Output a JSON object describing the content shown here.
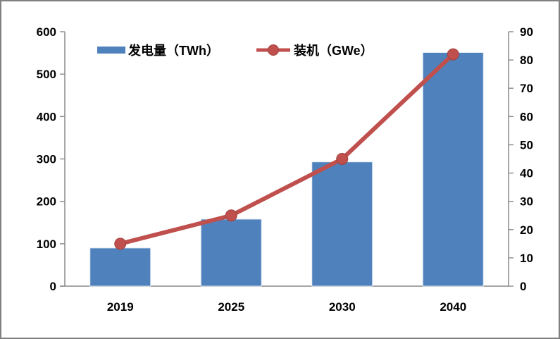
{
  "chart_data": {
    "type": "combo",
    "categories": [
      "2019",
      "2025",
      "2030",
      "2040"
    ],
    "series": [
      {
        "name": "发电量（TWh）",
        "type": "bar",
        "axis": "left",
        "color": "#4F81BD",
        "values": [
          90,
          158,
          293,
          551
        ]
      },
      {
        "name": "装机（GWe）",
        "type": "line",
        "axis": "right",
        "color": "#C0504D",
        "marker": "circle",
        "marker_stroke": "#A0403D",
        "values": [
          15,
          25,
          45,
          82
        ]
      }
    ],
    "title": "",
    "xlabel": "",
    "ylabel_left": "",
    "ylabel_right": "",
    "left_axis": {
      "min": 0,
      "max": 600,
      "step": 100,
      "ticks": [
        "0",
        "100",
        "200",
        "300",
        "400",
        "500",
        "600"
      ]
    },
    "right_axis": {
      "min": 0,
      "max": 90,
      "step": 10,
      "ticks": [
        "0",
        "10",
        "20",
        "30",
        "40",
        "50",
        "60",
        "70",
        "80",
        "90"
      ]
    },
    "grid": "off",
    "legend_position": "top-inside",
    "axis_color": "#8A8A8A",
    "text_color": "#000000",
    "background": "#FFFFFF",
    "frame_border_color": "#808080"
  }
}
